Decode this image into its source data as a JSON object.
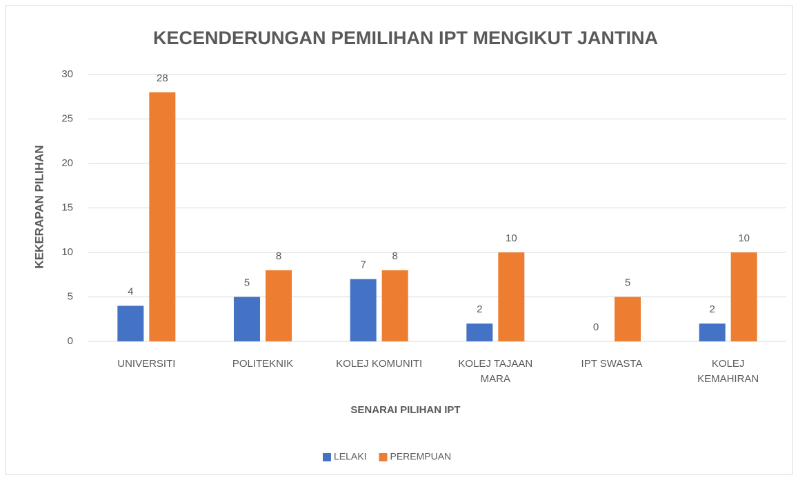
{
  "chart_data": {
    "type": "bar",
    "title": "KECENDERUNGAN PEMILIHAN IPT MENGIKUT JANTINA",
    "x_label": "SENARAI PILIHAN IPT",
    "y_label": "KEKERAPAN PILIHAN",
    "categories": [
      "UNIVERSITI",
      "POLITEKNIK",
      "KOLEJ KOMUNITI",
      "KOLEJ TAJAAN MARA",
      "IPT SWASTA",
      "KOLEJ KEMAHIRAN"
    ],
    "series": [
      {
        "name": "LELAKI",
        "color": "#4472c4",
        "values": [
          4,
          5,
          7,
          2,
          0,
          2
        ]
      },
      {
        "name": "PEREMPUAN",
        "color": "#ed7d31",
        "values": [
          28,
          8,
          8,
          10,
          5,
          10
        ]
      }
    ],
    "ylim": [
      0,
      30
    ],
    "yticks": [
      0,
      5,
      10,
      15,
      20,
      25,
      30
    ],
    "grid": true,
    "legend": "bottom"
  }
}
